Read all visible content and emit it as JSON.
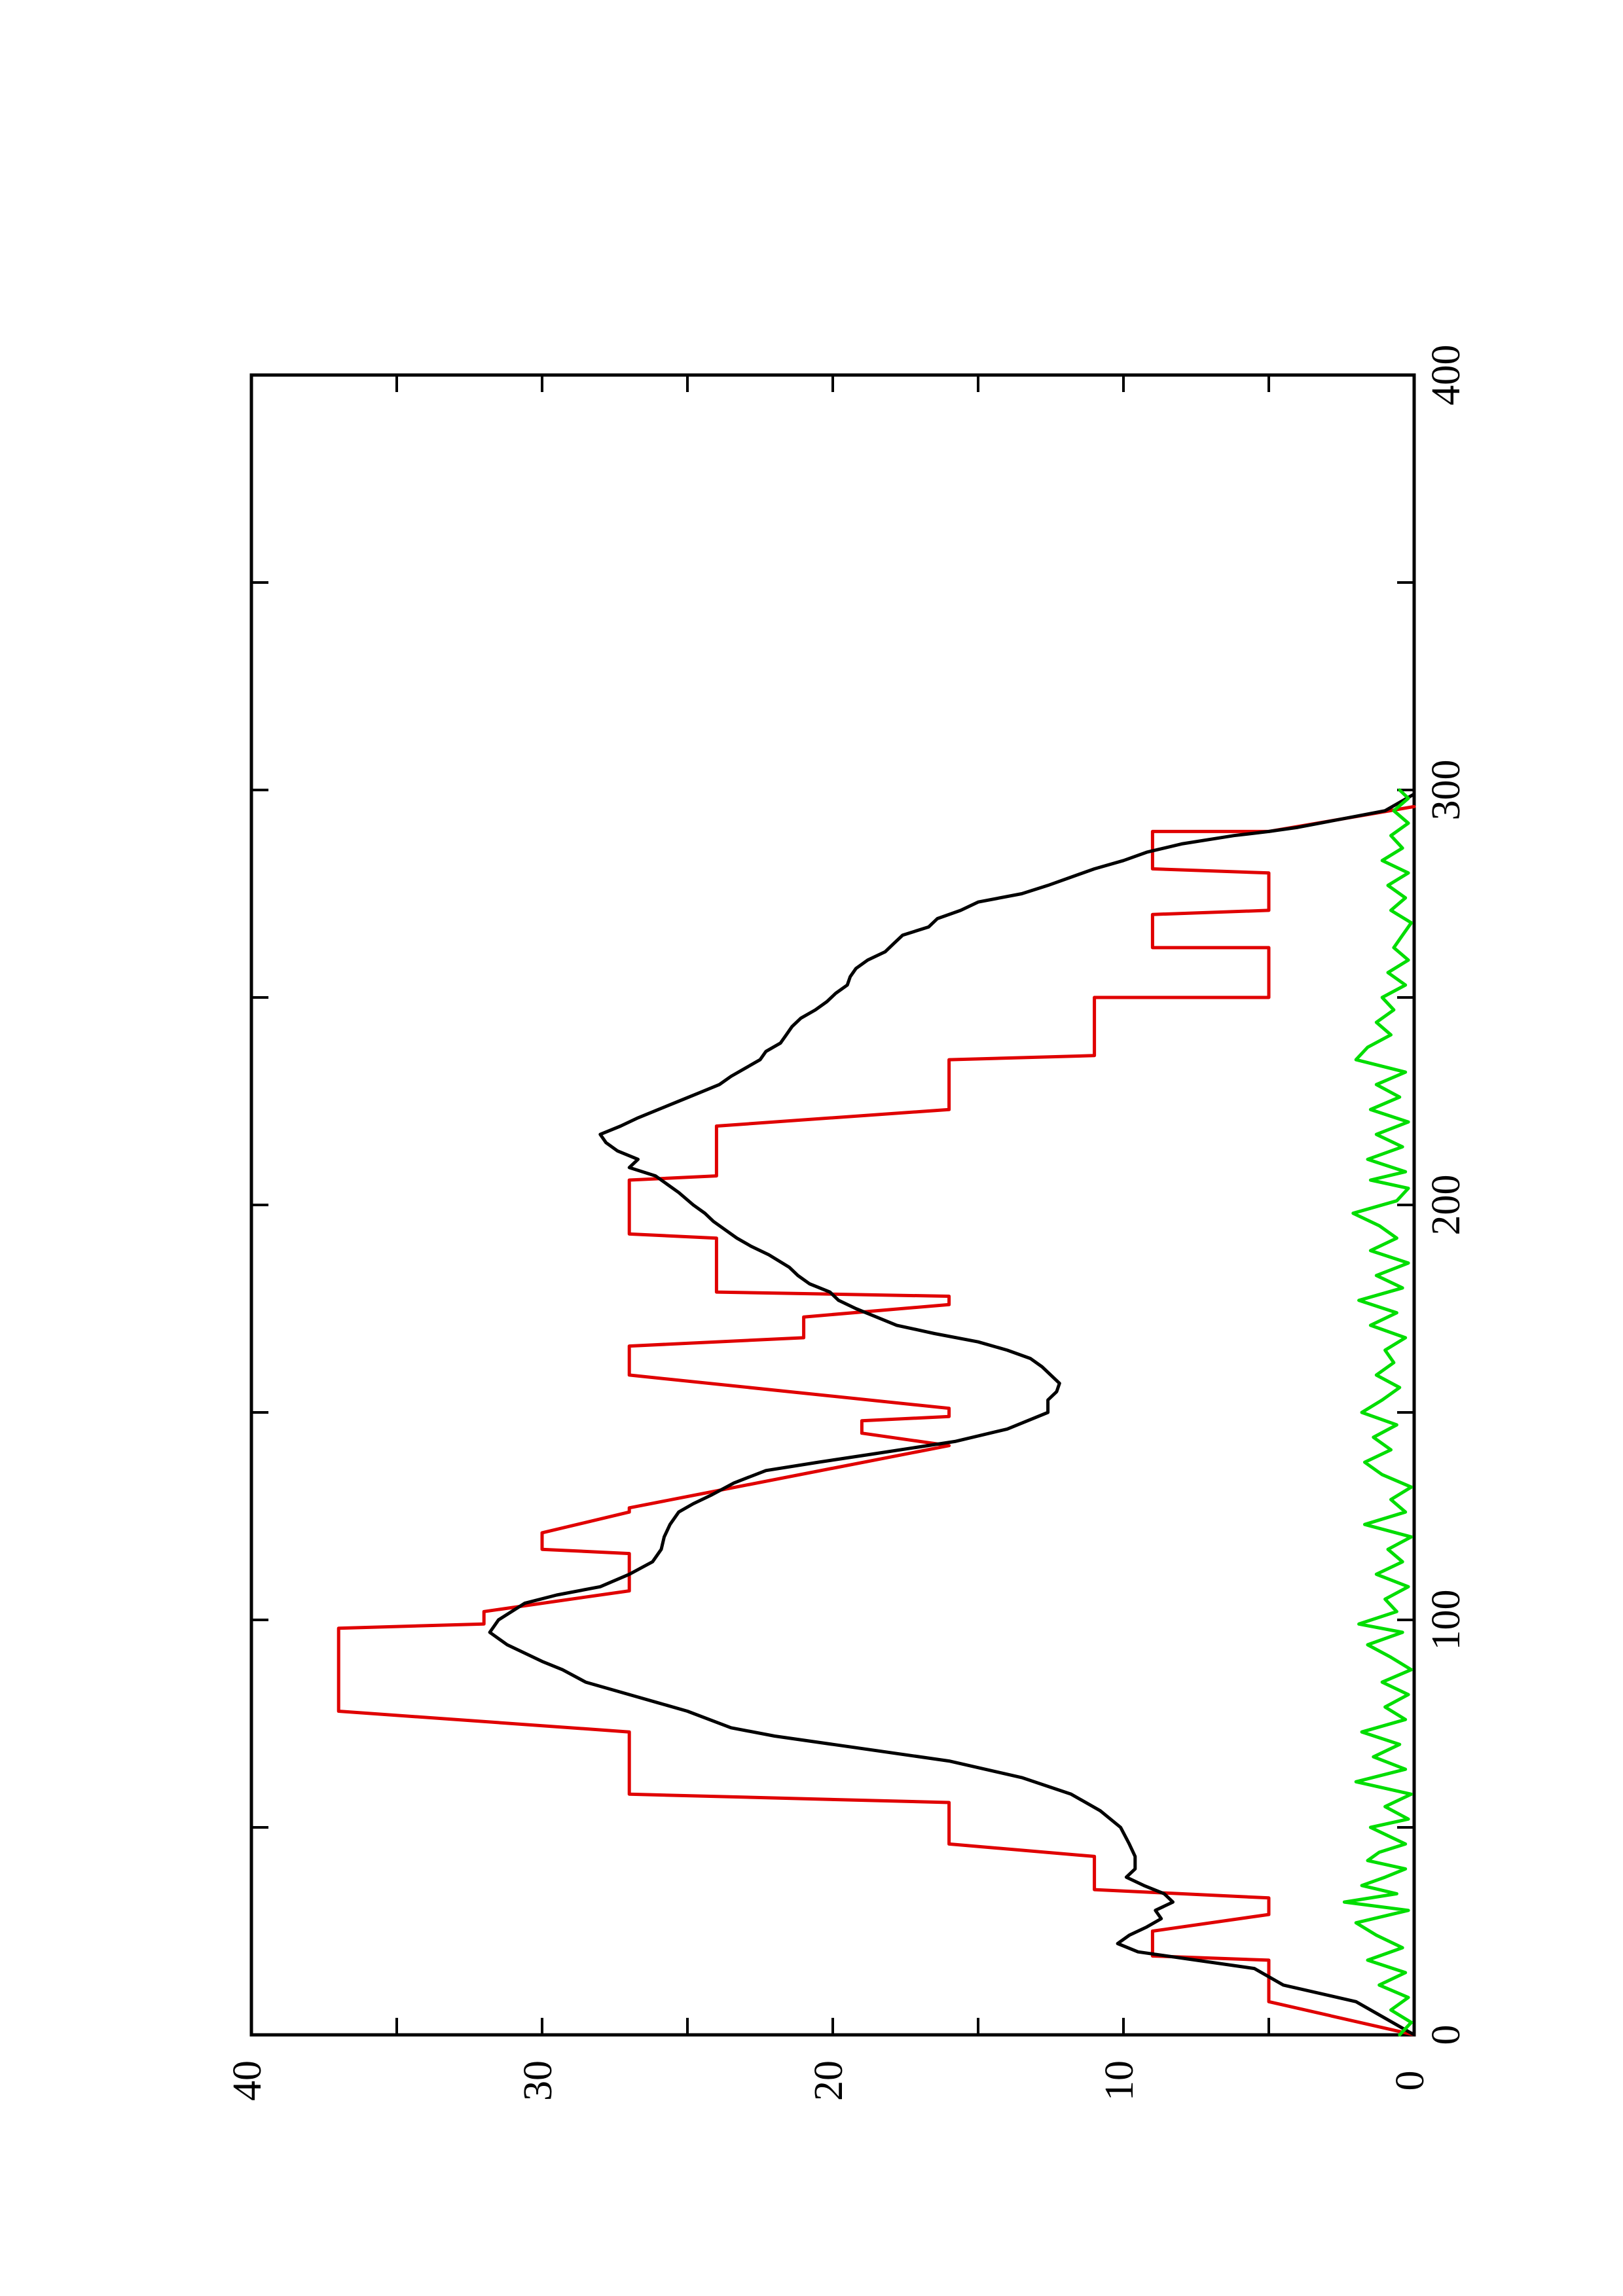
{
  "chart_data": {
    "type": "line",
    "orientation": "rotated 90 degrees counter-clockwise (page is landscape plot printed in portrait)",
    "title": "",
    "xlabel": "",
    "ylabel": "",
    "xlim": [
      0,
      400
    ],
    "ylim": [
      0,
      40
    ],
    "grid": false,
    "x_ticks": [
      0,
      100,
      200,
      300,
      400
    ],
    "x_tick_labels": [
      "0",
      "100",
      "200",
      "300",
      "400"
    ],
    "y_ticks": [
      0,
      10,
      20,
      30,
      40
    ],
    "y_tick_labels": [
      "0",
      "10",
      "20",
      "30",
      "40"
    ],
    "series": [
      {
        "color": "#e00000",
        "points": [
          [
            0,
            0
          ],
          [
            8,
            5
          ],
          [
            18,
            5
          ],
          [
            19,
            9
          ],
          [
            25,
            9
          ],
          [
            29,
            5
          ],
          [
            33,
            5
          ],
          [
            35,
            11
          ],
          [
            43,
            11
          ],
          [
            46,
            16
          ],
          [
            56,
            16
          ],
          [
            58,
            27
          ],
          [
            73,
            27
          ],
          [
            78,
            37
          ],
          [
            98,
            37
          ],
          [
            99,
            32
          ],
          [
            102,
            32
          ],
          [
            107,
            27
          ],
          [
            116,
            27
          ],
          [
            117,
            30
          ],
          [
            121,
            30
          ],
          [
            126,
            27
          ],
          [
            127,
            27
          ],
          [
            142,
            16
          ],
          [
            145,
            19
          ],
          [
            148,
            19
          ],
          [
            149,
            16
          ],
          [
            151,
            16
          ],
          [
            159,
            27
          ],
          [
            166,
            27
          ],
          [
            168,
            21
          ],
          [
            173,
            21
          ],
          [
            176,
            16
          ],
          [
            178,
            16
          ],
          [
            179,
            24
          ],
          [
            192,
            24
          ],
          [
            193,
            27
          ],
          [
            206,
            27
          ],
          [
            207,
            24
          ],
          [
            219,
            24
          ],
          [
            223,
            16
          ],
          [
            235,
            16
          ],
          [
            236,
            11
          ],
          [
            250,
            11
          ],
          [
            250,
            5
          ],
          [
            262,
            5
          ],
          [
            262,
            9
          ],
          [
            270,
            9
          ],
          [
            271,
            5
          ],
          [
            280,
            5
          ],
          [
            281,
            9
          ],
          [
            290,
            9
          ],
          [
            290,
            5
          ],
          [
            296,
            0
          ]
        ]
      },
      {
        "color": "#000000",
        "points": [
          [
            0,
            0
          ],
          [
            4,
            1
          ],
          [
            8,
            2
          ],
          [
            12,
            4.5
          ],
          [
            16,
            5.5
          ],
          [
            20,
            9.5
          ],
          [
            22,
            10.2
          ],
          [
            24,
            9.8
          ],
          [
            26,
            9.2
          ],
          [
            28,
            8.7
          ],
          [
            30,
            8.9
          ],
          [
            32,
            8.3
          ],
          [
            34,
            8.6
          ],
          [
            36,
            9.3
          ],
          [
            38,
            9.9
          ],
          [
            40,
            9.6
          ],
          [
            43,
            9.6
          ],
          [
            46,
            9.8
          ],
          [
            50,
            10.1
          ],
          [
            54,
            10.8
          ],
          [
            58,
            11.8
          ],
          [
            62,
            13.5
          ],
          [
            66,
            16
          ],
          [
            70,
            20
          ],
          [
            72,
            22
          ],
          [
            74,
            23.5
          ],
          [
            78,
            25
          ],
          [
            80,
            26
          ],
          [
            82,
            27
          ],
          [
            85,
            28.5
          ],
          [
            88,
            29.3
          ],
          [
            90,
            30
          ],
          [
            94,
            31.2
          ],
          [
            97,
            31.8
          ],
          [
            100,
            31.5
          ],
          [
            104,
            30.6
          ],
          [
            106,
            29.5
          ],
          [
            108,
            28
          ],
          [
            111,
            27
          ],
          [
            114,
            26.2
          ],
          [
            117,
            25.9
          ],
          [
            120,
            25.8
          ],
          [
            123,
            25.6
          ],
          [
            126,
            25.3
          ],
          [
            128,
            24.8
          ],
          [
            130,
            24.2
          ],
          [
            133,
            23.4
          ],
          [
            136,
            22.3
          ],
          [
            138,
            20.5
          ],
          [
            140,
            18.6
          ],
          [
            143,
            15.8
          ],
          [
            146,
            14
          ],
          [
            150,
            12.6
          ],
          [
            153,
            12.6
          ],
          [
            155,
            12.3
          ],
          [
            157,
            12.2
          ],
          [
            159,
            12.5
          ],
          [
            161,
            12.8
          ],
          [
            163,
            13.2
          ],
          [
            165,
            14
          ],
          [
            167,
            15
          ],
          [
            169,
            16.5
          ],
          [
            171,
            17.8
          ],
          [
            173,
            18.5
          ],
          [
            175,
            19.2
          ],
          [
            177,
            19.8
          ],
          [
            179,
            20.1
          ],
          [
            181,
            20.8
          ],
          [
            183,
            21.2
          ],
          [
            185,
            21.5
          ],
          [
            188,
            22.2
          ],
          [
            190,
            22.8
          ],
          [
            192,
            23.3
          ],
          [
            194,
            23.7
          ],
          [
            196,
            24.1
          ],
          [
            198,
            24.4
          ],
          [
            200,
            24.8
          ],
          [
            203,
            25.3
          ],
          [
            205,
            25.7
          ],
          [
            207,
            26.1
          ],
          [
            209,
            27
          ],
          [
            211,
            26.7
          ],
          [
            213,
            27.4
          ],
          [
            215,
            27.8
          ],
          [
            217,
            28
          ],
          [
            219,
            27.3
          ],
          [
            221,
            26.7
          ],
          [
            223,
            26
          ],
          [
            225,
            25.3
          ],
          [
            227,
            24.6
          ],
          [
            229,
            23.9
          ],
          [
            231,
            23.5
          ],
          [
            233,
            23
          ],
          [
            235,
            22.5
          ],
          [
            237,
            22.3
          ],
          [
            239,
            21.8
          ],
          [
            241,
            21.6
          ],
          [
            243,
            21.4
          ],
          [
            245,
            21.1
          ],
          [
            247,
            20.6
          ],
          [
            249,
            20.2
          ],
          [
            251,
            19.9
          ],
          [
            253,
            19.5
          ],
          [
            255,
            19.4
          ],
          [
            257,
            19.2
          ],
          [
            259,
            18.8
          ],
          [
            261,
            18.2
          ],
          [
            263,
            17.9
          ],
          [
            265,
            17.6
          ],
          [
            267,
            16.7
          ],
          [
            269,
            16.4
          ],
          [
            271,
            15.6
          ],
          [
            273,
            15
          ],
          [
            275,
            13.5
          ],
          [
            277,
            12.6
          ],
          [
            279,
            11.8
          ],
          [
            281,
            11
          ],
          [
            283,
            10
          ],
          [
            285,
            9.2
          ],
          [
            287,
            8
          ],
          [
            289,
            6.2
          ],
          [
            290,
            5
          ],
          [
            291,
            4
          ],
          [
            295,
            1
          ],
          [
            299,
            0
          ]
        ]
      },
      {
        "color": "#00dd00",
        "points": [
          [
            0,
            0.5
          ],
          [
            3,
            0.1
          ],
          [
            6,
            0.8
          ],
          [
            9,
            0.2
          ],
          [
            12,
            1.2
          ],
          [
            15,
            0.3
          ],
          [
            18,
            1.6
          ],
          [
            21,
            0.4
          ],
          [
            24,
            1.3
          ],
          [
            27,
            2.0
          ],
          [
            30,
            0.2
          ],
          [
            32,
            2.4
          ],
          [
            34,
            0.6
          ],
          [
            36,
            1.8
          ],
          [
            38,
            1.0
          ],
          [
            40,
            0.3
          ],
          [
            42,
            1.6
          ],
          [
            44,
            1.2
          ],
          [
            46,
            0.3
          ],
          [
            48,
            0.9
          ],
          [
            50,
            1.5
          ],
          [
            52,
            0.2
          ],
          [
            55,
            1.0
          ],
          [
            58,
            0.1
          ],
          [
            61,
            2.0
          ],
          [
            64,
            0.3
          ],
          [
            67,
            1.4
          ],
          [
            70,
            0.5
          ],
          [
            73,
            1.8
          ],
          [
            76,
            0.3
          ],
          [
            79,
            1.0
          ],
          [
            82,
            0.2
          ],
          [
            85,
            1.1
          ],
          [
            88,
            0.1
          ],
          [
            91,
            0.8
          ],
          [
            94,
            1.6
          ],
          [
            97,
            0.4
          ],
          [
            99,
            1.9
          ],
          [
            102,
            0.6
          ],
          [
            105,
            1.0
          ],
          [
            108,
            0.2
          ],
          [
            111,
            1.3
          ],
          [
            114,
            0.4
          ],
          [
            117,
            0.9
          ],
          [
            120,
            0.1
          ],
          [
            123,
            1.7
          ],
          [
            126,
            0.3
          ],
          [
            129,
            0.8
          ],
          [
            132,
            0.1
          ],
          [
            135,
            1.1
          ],
          [
            138,
            1.7
          ],
          [
            141,
            0.8
          ],
          [
            144,
            1.4
          ],
          [
            147,
            0.6
          ],
          [
            150,
            1.8
          ],
          [
            153,
            1.1
          ],
          [
            156,
            0.5
          ],
          [
            159,
            1.3
          ],
          [
            162,
            0.7
          ],
          [
            165,
            1.0
          ],
          [
            168,
            0.3
          ],
          [
            171,
            1.5
          ],
          [
            174,
            0.6
          ],
          [
            177,
            1.9
          ],
          [
            180,
            0.4
          ],
          [
            183,
            1.3
          ],
          [
            186,
            0.2
          ],
          [
            189,
            1.5
          ],
          [
            192,
            0.6
          ],
          [
            195,
            1.2
          ],
          [
            198,
            2.1
          ],
          [
            201,
            0.6
          ],
          [
            204,
            0.2
          ],
          [
            206,
            1.5
          ],
          [
            208,
            0.3
          ],
          [
            211,
            1.6
          ],
          [
            214,
            0.4
          ],
          [
            217,
            1.3
          ],
          [
            220,
            0.2
          ],
          [
            223,
            1.5
          ],
          [
            226,
            0.5
          ],
          [
            229,
            1.3
          ],
          [
            232,
            0.3
          ],
          [
            235,
            2.0
          ],
          [
            238,
            1.6
          ],
          [
            241,
            0.8
          ],
          [
            244,
            1.3
          ],
          [
            247,
            0.7
          ],
          [
            250,
            1.1
          ],
          [
            253,
            0.3
          ],
          [
            256,
            0.9
          ],
          [
            259,
            0.2
          ],
          [
            262,
            0.7
          ],
          [
            265,
            0.4
          ],
          [
            268,
            0.1
          ],
          [
            271,
            0.8
          ],
          [
            274,
            0.3
          ],
          [
            277,
            0.9
          ],
          [
            280,
            0.2
          ],
          [
            283,
            1.1
          ],
          [
            286,
            0.4
          ],
          [
            289,
            0.8
          ],
          [
            292,
            0.2
          ],
          [
            295,
            0.7
          ],
          [
            298,
            0.2
          ],
          [
            300,
            0.5
          ]
        ]
      }
    ]
  }
}
